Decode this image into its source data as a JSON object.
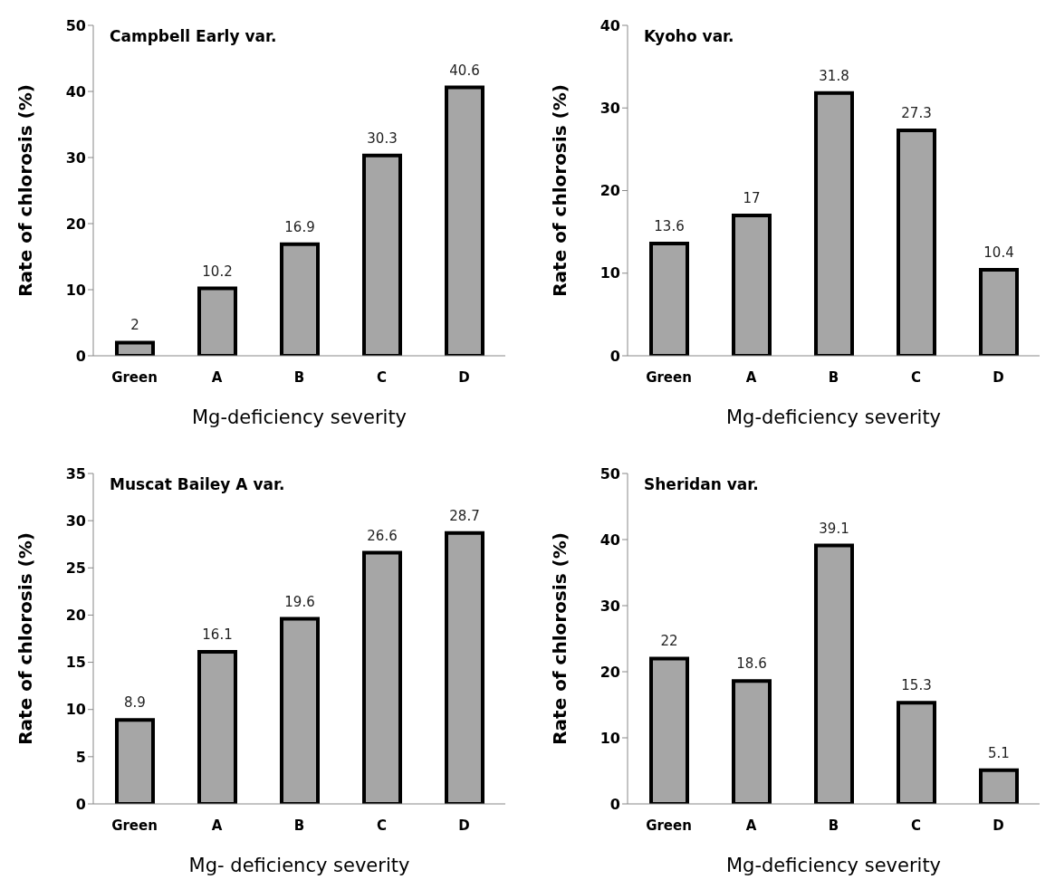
{
  "chart_data": [
    {
      "type": "bar",
      "title": "Campbell Early var.",
      "xlabel": "Mg-deficiency severity",
      "ylabel": "Rate of chlorosis (%)",
      "categories": [
        "Green",
        "A",
        "B",
        "C",
        "D"
      ],
      "values": [
        2,
        10.2,
        16.9,
        30.3,
        40.6
      ],
      "color": "#a6a6a6",
      "ylim": [
        0,
        50
      ],
      "yticks": [
        0,
        10,
        20,
        30,
        40,
        50
      ],
      "data_labels": true,
      "grid": false
    },
    {
      "type": "bar",
      "title": "Kyoho var.",
      "xlabel": "Mg-deficiency severity",
      "ylabel": "Rate of chlorosis  (%)",
      "categories": [
        "Green",
        "A",
        "B",
        "C",
        "D"
      ],
      "values": [
        13.6,
        17,
        31.8,
        27.3,
        10.4
      ],
      "color": "#a6a6a6",
      "ylim": [
        0,
        40
      ],
      "yticks": [
        0,
        10,
        20,
        30,
        40
      ],
      "data_labels": true,
      "grid": false
    },
    {
      "type": "bar",
      "title": "Muscat Bailey A var.",
      "xlabel": "Mg- deficiency severity",
      "ylabel": "Rate of chlorosis (%)",
      "categories": [
        "Green",
        "A",
        "B",
        "C",
        "D"
      ],
      "values": [
        8.9,
        16.1,
        19.6,
        26.6,
        28.7
      ],
      "color": "#a6a6a6",
      "ylim": [
        0,
        35
      ],
      "yticks": [
        0,
        5,
        10,
        15,
        20,
        25,
        30,
        35
      ],
      "data_labels": true,
      "grid": false
    },
    {
      "type": "bar",
      "title": "Sheridan var.",
      "xlabel": "Mg-deficiency severity",
      "ylabel": "Rate of chlorosis (%)",
      "categories": [
        "Green",
        "A",
        "B",
        "C",
        "D"
      ],
      "values": [
        22,
        18.6,
        39.1,
        15.3,
        5.1
      ],
      "color": "#a6a6a6",
      "ylim": [
        0,
        50
      ],
      "yticks": [
        0,
        10,
        20,
        30,
        40,
        50
      ],
      "data_labels": true,
      "grid": false
    }
  ]
}
